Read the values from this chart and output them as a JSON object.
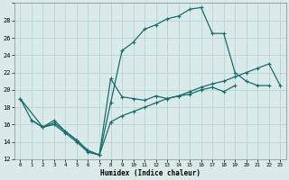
{
  "xlabel": "Humidex (Indice chaleur)",
  "bg_color": "#daeaea",
  "grid_color": "#b8d4d4",
  "line_color": "#1a6b6b",
  "xlim": [
    -0.5,
    23.5
  ],
  "ylim": [
    12,
    30
  ],
  "xticks": [
    0,
    1,
    2,
    3,
    4,
    5,
    6,
    7,
    8,
    9,
    10,
    11,
    12,
    13,
    14,
    15,
    16,
    17,
    18,
    19,
    20,
    21,
    22,
    23
  ],
  "yticks": [
    12,
    14,
    16,
    18,
    20,
    22,
    24,
    26,
    28,
    30
  ],
  "ytick_labels": [
    "12",
    "14",
    "16",
    "18",
    "20",
    "22",
    "24",
    "26",
    "28",
    ""
  ],
  "line_jagged_x": [
    0,
    1,
    2,
    3,
    4,
    5,
    6,
    7,
    8,
    9,
    10,
    11,
    12,
    13,
    14,
    15,
    16,
    17,
    18,
    19
  ],
  "line_jagged_y": [
    19.0,
    16.5,
    15.7,
    16.2,
    15.2,
    14.2,
    13.0,
    12.5,
    21.3,
    19.2,
    19.0,
    18.8,
    19.3,
    19.0,
    19.3,
    19.5,
    20.0,
    20.3,
    19.8,
    20.5
  ],
  "line_top_x": [
    0,
    2,
    3,
    4,
    5,
    6,
    7,
    8,
    9,
    10,
    11,
    12,
    13,
    14,
    15,
    16,
    17,
    18,
    19,
    20,
    21,
    22
  ],
  "line_top_y": [
    19.0,
    15.7,
    16.5,
    15.2,
    14.2,
    13.0,
    12.5,
    18.5,
    24.5,
    25.5,
    27.0,
    27.5,
    28.2,
    28.5,
    29.3,
    29.5,
    26.5,
    26.5,
    22.0,
    21.0,
    20.5,
    20.5
  ],
  "line_bottom_x": [
    1,
    2,
    3,
    4,
    5,
    6,
    7,
    8,
    9,
    10,
    11,
    12,
    13,
    14,
    15,
    16,
    17,
    18,
    19,
    20,
    21,
    22,
    23
  ],
  "line_bottom_y": [
    16.5,
    15.7,
    16.0,
    15.0,
    14.0,
    12.8,
    12.5,
    16.3,
    17.0,
    17.5,
    18.0,
    18.5,
    19.0,
    19.3,
    19.8,
    20.3,
    20.7,
    21.0,
    21.5,
    22.0,
    22.5,
    23.0,
    20.5
  ],
  "marker_size": 3.5,
  "line_width": 0.9
}
